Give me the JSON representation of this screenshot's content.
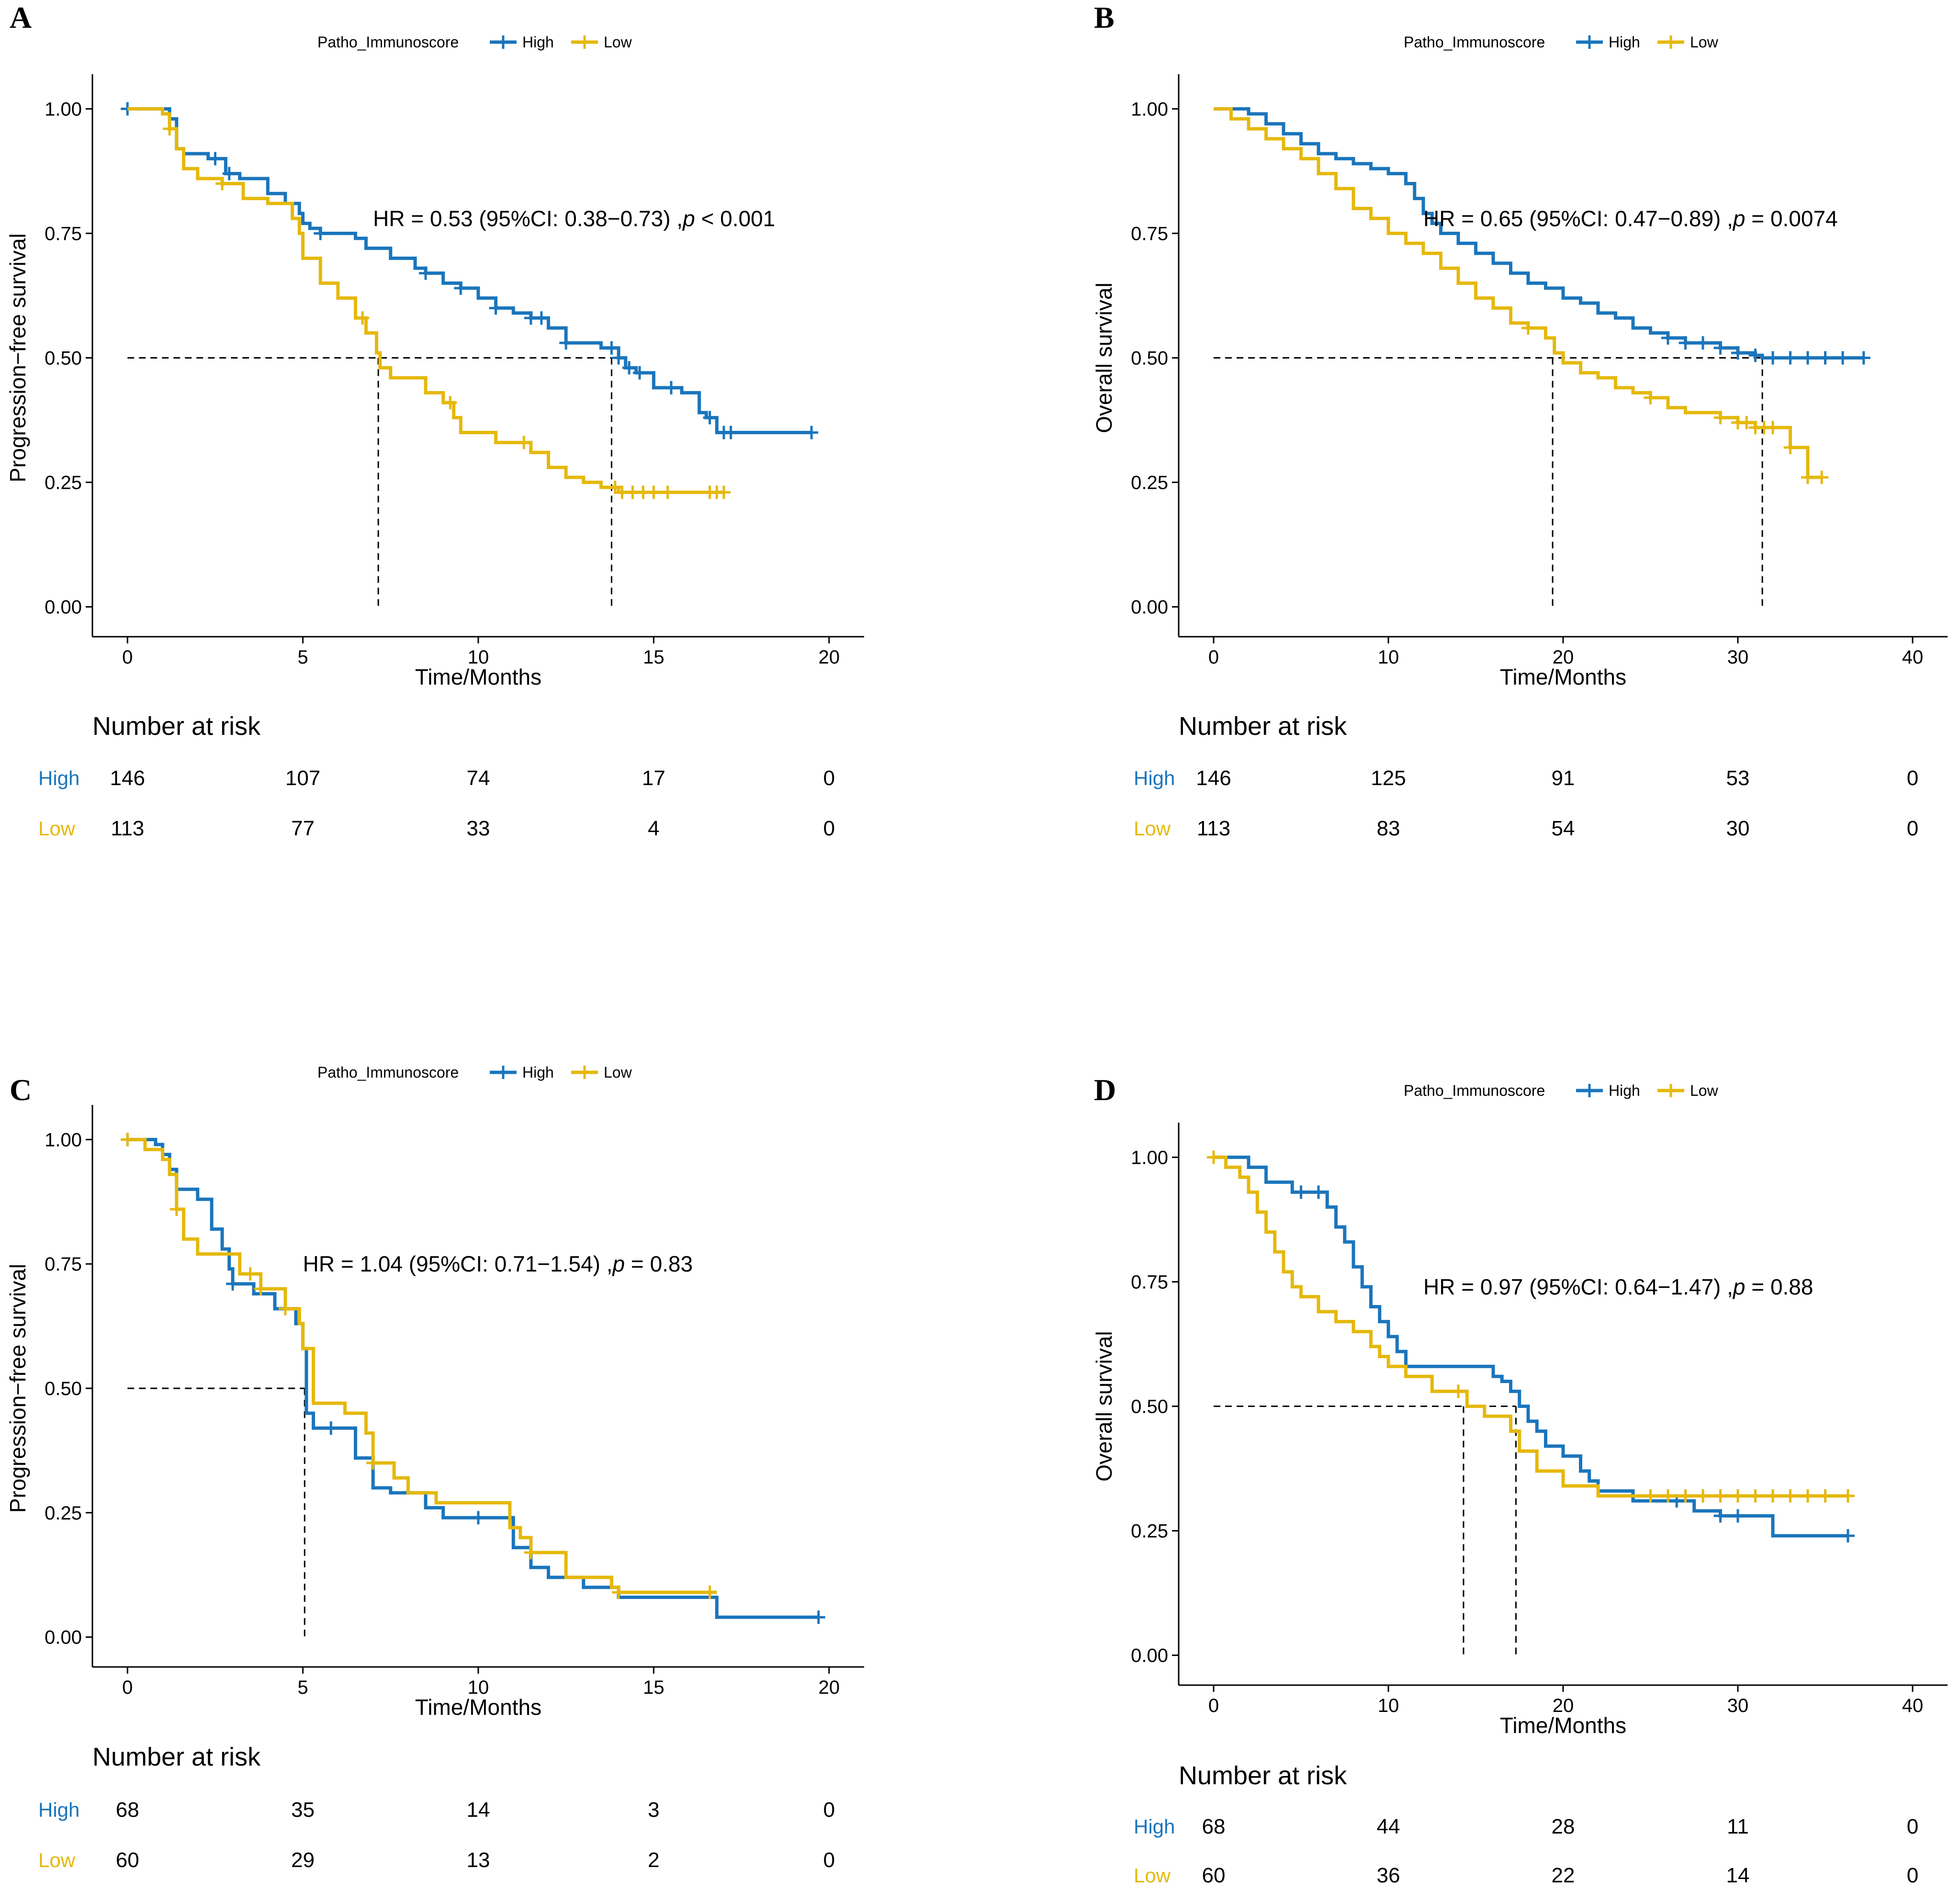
{
  "colors": {
    "High": "#1a75bc",
    "Low": "#e5b80b",
    "axis": "#000000",
    "median": "#000000"
  },
  "chart_data": [
    {
      "panel": "A",
      "type": "line",
      "legend_title": "Patho_Immunoscore",
      "legend_labels": [
        "High",
        "Low"
      ],
      "ylabel": "Progression−free survival",
      "xlabel": "Time/Months",
      "xlim": [
        -1,
        21
      ],
      "ylim": [
        -0.06,
        1.06
      ],
      "x_ticks": [
        0,
        5,
        10,
        15,
        20
      ],
      "x_tick_labels": [
        "0",
        "5",
        "10",
        "15",
        "20"
      ],
      "y_ticks": [
        0,
        0.25,
        0.5,
        0.75,
        1
      ],
      "y_tick_labels": [
        "0.00",
        "0.25",
        "0.50",
        "0.75",
        "1.00"
      ],
      "hr_text": "HR = 0.53 (95%CI: 0.38−0.73) ,",
      "p_label": "p",
      "p_text": " < 0.001",
      "hr_pos": [
        7,
        0.78
      ],
      "medians": [
        7.15,
        13.8
      ],
      "series": [
        {
          "name": "High",
          "x": [
            0,
            1.2,
            1.4,
            1.6,
            2.3,
            2.8,
            3.2,
            4.0,
            4.5,
            4.9,
            5.0,
            5.2,
            5.5,
            6.5,
            6.8,
            7.5,
            8.2,
            8.5,
            9.0,
            9.5,
            10.0,
            10.5,
            11.0,
            11.5,
            12.0,
            12.5,
            13.5,
            14.0,
            14.2,
            14.5,
            15.0,
            15.8,
            16.3,
            16.5,
            16.8,
            19.5
          ],
          "y": [
            1.0,
            0.98,
            0.92,
            0.91,
            0.9,
            0.87,
            0.86,
            0.83,
            0.81,
            0.79,
            0.77,
            0.76,
            0.75,
            0.74,
            0.72,
            0.7,
            0.68,
            0.67,
            0.65,
            0.64,
            0.62,
            0.6,
            0.59,
            0.58,
            0.56,
            0.53,
            0.52,
            0.5,
            0.48,
            0.47,
            0.44,
            0.43,
            0.39,
            0.38,
            0.35,
            0.35
          ],
          "censor_x": [
            0,
            2.5,
            2.9,
            5.5,
            8.5,
            9.5,
            10.5,
            11.5,
            11.8,
            12.5,
            13.8,
            14.0,
            14.3,
            14.6,
            15.5,
            16.6,
            17.0,
            17.2,
            19.5
          ],
          "risk": [
            "146",
            "107",
            "74",
            "17",
            "0"
          ]
        },
        {
          "name": "Low",
          "x": [
            0,
            1.0,
            1.2,
            1.4,
            1.6,
            2.0,
            2.7,
            3.3,
            4.0,
            4.7,
            4.9,
            5.0,
            5.5,
            6.0,
            6.5,
            6.8,
            7.1,
            7.2,
            7.5,
            8.5,
            9.0,
            9.3,
            9.5,
            10.5,
            11.5,
            12.0,
            12.5,
            13.0,
            13.5,
            14.0,
            17.0
          ],
          "y": [
            1.0,
            0.99,
            0.96,
            0.92,
            0.88,
            0.86,
            0.85,
            0.82,
            0.81,
            0.78,
            0.75,
            0.7,
            0.65,
            0.62,
            0.58,
            0.55,
            0.51,
            0.48,
            0.46,
            0.43,
            0.41,
            0.38,
            0.35,
            0.33,
            0.31,
            0.28,
            0.26,
            0.25,
            0.24,
            0.23,
            0.23
          ],
          "censor_x": [
            1.2,
            2.7,
            6.7,
            9.2,
            11.3,
            13.9,
            14.1,
            14.4,
            14.7,
            15.0,
            15.4,
            16.6,
            16.8,
            17.0
          ],
          "risk": [
            "113",
            "77",
            "33",
            "4",
            "0"
          ]
        }
      ],
      "risk_title": "Number at risk",
      "risk_times": [
        0,
        5,
        10,
        15,
        20
      ]
    },
    {
      "panel": "B",
      "type": "line",
      "legend_title": "Patho_Immunoscore",
      "legend_labels": [
        "High",
        "Low"
      ],
      "ylabel": "Overall survival",
      "xlabel": "Time/Months",
      "xlim": [
        -2,
        42
      ],
      "ylim": [
        -0.06,
        1.06
      ],
      "x_ticks": [
        0,
        10,
        20,
        30,
        40
      ],
      "x_tick_labels": [
        "0",
        "10",
        "20",
        "30",
        "40"
      ],
      "y_ticks": [
        0,
        0.25,
        0.5,
        0.75,
        1
      ],
      "y_tick_labels": [
        "0.00",
        "0.25",
        "0.50",
        "0.75",
        "1.00"
      ],
      "hr_text": "HR = 0.65 (95%CI: 0.47−0.89) ,",
      "p_label": "p",
      "p_text": " = 0.0074",
      "hr_pos": [
        12,
        0.78
      ],
      "medians": [
        19.4,
        31.4
      ],
      "series": [
        {
          "name": "High",
          "x": [
            0,
            2.0,
            3.0,
            4.0,
            5.0,
            6.0,
            7.0,
            8.0,
            9.0,
            10.0,
            11.0,
            11.5,
            12.0,
            12.5,
            13.0,
            14.0,
            15.0,
            16.0,
            17.0,
            18.0,
            19.0,
            20.0,
            21.0,
            22.0,
            23.0,
            24.0,
            25.0,
            26.0,
            27.0,
            28.0,
            29.0,
            30.0,
            31.0,
            31.4,
            37.2
          ],
          "y": [
            1.0,
            0.99,
            0.97,
            0.95,
            0.93,
            0.91,
            0.9,
            0.89,
            0.88,
            0.87,
            0.85,
            0.82,
            0.79,
            0.77,
            0.75,
            0.73,
            0.71,
            0.69,
            0.67,
            0.65,
            0.64,
            0.62,
            0.61,
            0.59,
            0.58,
            0.56,
            0.55,
            0.54,
            0.53,
            0.53,
            0.52,
            0.51,
            0.505,
            0.5,
            0.5
          ],
          "censor_x": [
            26,
            27,
            28,
            29,
            30,
            31,
            32,
            33,
            34,
            35,
            36,
            37.2
          ],
          "risk": [
            "146",
            "125",
            "91",
            "53",
            "0"
          ]
        },
        {
          "name": "Low",
          "x": [
            0,
            1.0,
            2.0,
            3.0,
            4.0,
            5.0,
            6.0,
            7.0,
            8.0,
            9.0,
            10.0,
            11.0,
            12.0,
            13.0,
            14.0,
            15.0,
            16.0,
            17.0,
            18.0,
            19.0,
            19.5,
            20.0,
            21.0,
            22.0,
            23.0,
            24.0,
            25.0,
            26.0,
            27.0,
            28.0,
            29.0,
            30.0,
            31.0,
            32.0,
            33.0,
            34.0,
            34.8
          ],
          "y": [
            1.0,
            0.98,
            0.96,
            0.94,
            0.92,
            0.9,
            0.87,
            0.84,
            0.8,
            0.78,
            0.75,
            0.73,
            0.71,
            0.68,
            0.65,
            0.62,
            0.6,
            0.57,
            0.56,
            0.54,
            0.51,
            0.49,
            0.47,
            0.46,
            0.44,
            0.43,
            0.42,
            0.4,
            0.39,
            0.39,
            0.38,
            0.37,
            0.36,
            0.36,
            0.32,
            0.26,
            0.26
          ],
          "censor_x": [
            18,
            25,
            29,
            30,
            30.5,
            31,
            31.5,
            32,
            33,
            34,
            34.8
          ],
          "risk": [
            "113",
            "83",
            "54",
            "30",
            "0"
          ]
        }
      ],
      "risk_title": "Number at risk",
      "risk_times": [
        0,
        10,
        20,
        30,
        40
      ]
    },
    {
      "panel": "C",
      "type": "line",
      "legend_title": "Patho_Immunoscore",
      "legend_labels": [
        "High",
        "Low"
      ],
      "ylabel": "Progression−free survival",
      "xlabel": "Time/Months",
      "xlim": [
        -1,
        21
      ],
      "ylim": [
        -0.06,
        1.06
      ],
      "x_ticks": [
        0,
        5,
        10,
        15,
        20
      ],
      "x_tick_labels": [
        "0",
        "5",
        "10",
        "15",
        "20"
      ],
      "y_ticks": [
        0,
        0.25,
        0.5,
        0.75,
        1
      ],
      "y_tick_labels": [
        "0.00",
        "0.25",
        "0.50",
        "0.75",
        "1.00"
      ],
      "hr_text": "HR = 1.04 (95%CI: 0.71−1.54) ,",
      "p_label": "p",
      "p_text": " = 0.83",
      "hr_pos": [
        5,
        0.75
      ],
      "medians": [
        5.05
      ],
      "series": [
        {
          "name": "High",
          "x": [
            0,
            0.8,
            1.0,
            1.2,
            1.4,
            2.0,
            2.4,
            2.7,
            2.9,
            3.0,
            3.6,
            4.2,
            4.8,
            5.0,
            5.1,
            5.3,
            6.5,
            7.0,
            7.5,
            8.5,
            9.0,
            11.0,
            11.5,
            12.0,
            13.0,
            14.0,
            16.8,
            19.7
          ],
          "y": [
            1.0,
            0.99,
            0.97,
            0.94,
            0.9,
            0.88,
            0.82,
            0.78,
            0.74,
            0.71,
            0.69,
            0.66,
            0.63,
            0.58,
            0.45,
            0.42,
            0.36,
            0.3,
            0.29,
            0.26,
            0.24,
            0.18,
            0.14,
            0.12,
            0.1,
            0.08,
            0.04,
            0.04
          ],
          "censor_x": [
            0,
            3.0,
            5.8,
            10.0,
            19.7
          ],
          "risk": [
            "68",
            "35",
            "14",
            "3",
            "0"
          ]
        },
        {
          "name": "Low",
          "x": [
            0,
            0.5,
            1.0,
            1.2,
            1.4,
            1.6,
            2.0,
            3.2,
            3.8,
            4.5,
            4.9,
            5.0,
            5.3,
            6.2,
            6.8,
            7.0,
            7.6,
            8.0,
            8.8,
            10.9,
            11.2,
            11.5,
            12.5,
            13.8,
            14.0,
            16.8
          ],
          "y": [
            1.0,
            0.98,
            0.96,
            0.93,
            0.86,
            0.8,
            0.77,
            0.73,
            0.7,
            0.66,
            0.63,
            0.58,
            0.47,
            0.45,
            0.41,
            0.35,
            0.32,
            0.29,
            0.27,
            0.22,
            0.2,
            0.17,
            0.12,
            0.1,
            0.09,
            0.09
          ],
          "censor_x": [
            0,
            1.4,
            3.5,
            3.8,
            4.5,
            7.0,
            11.5,
            14.0,
            16.6
          ],
          "risk": [
            "60",
            "29",
            "13",
            "2",
            "0"
          ]
        }
      ],
      "risk_title": "Number at risk",
      "risk_times": [
        0,
        5,
        10,
        15,
        20
      ]
    },
    {
      "panel": "D",
      "type": "line",
      "legend_title": "Patho_Immunoscore",
      "legend_labels": [
        "High",
        "Low"
      ],
      "ylabel": "Overall survival",
      "xlabel": "Time/Months",
      "xlim": [
        -2,
        42
      ],
      "ylim": [
        -0.06,
        1.06
      ],
      "x_ticks": [
        0,
        10,
        20,
        30,
        40
      ],
      "x_tick_labels": [
        "0",
        "10",
        "20",
        "30",
        "40"
      ],
      "y_ticks": [
        0,
        0.25,
        0.5,
        0.75,
        1
      ],
      "y_tick_labels": [
        "0.00",
        "0.25",
        "0.50",
        "0.75",
        "1.00"
      ],
      "hr_text": "HR = 0.97 (95%CI: 0.64−1.47) ,",
      "p_label": "p",
      "p_text": " = 0.88",
      "hr_pos": [
        12,
        0.74
      ],
      "medians": [
        14.3,
        17.3
      ],
      "series": [
        {
          "name": "High",
          "x": [
            0,
            2.0,
            3.0,
            4.5,
            6.5,
            7.0,
            7.5,
            8.0,
            8.5,
            9.0,
            9.5,
            10.0,
            10.5,
            11.0,
            15.5,
            16.0,
            16.5,
            17.0,
            17.5,
            18.0,
            18.5,
            19.0,
            20.0,
            21.0,
            21.5,
            22.0,
            24.0,
            27.0,
            27.5,
            29.0,
            31.5,
            32.0,
            36.3
          ],
          "y": [
            1.0,
            0.98,
            0.95,
            0.93,
            0.9,
            0.86,
            0.83,
            0.78,
            0.74,
            0.7,
            0.67,
            0.64,
            0.61,
            0.58,
            0.58,
            0.56,
            0.55,
            0.53,
            0.5,
            0.47,
            0.45,
            0.42,
            0.4,
            0.37,
            0.35,
            0.33,
            0.31,
            0.31,
            0.29,
            0.28,
            0.28,
            0.24,
            0.24
          ],
          "censor_x": [
            5,
            6,
            26.5,
            29,
            30,
            36.3
          ],
          "risk": [
            "68",
            "44",
            "28",
            "11",
            "0"
          ]
        },
        {
          "name": "Low",
          "x": [
            0,
            0.7,
            1.5,
            2.0,
            2.5,
            3.0,
            3.5,
            4.0,
            4.5,
            5.0,
            6.0,
            7.0,
            8.0,
            9.0,
            9.5,
            10.0,
            11.0,
            12.5,
            14.5,
            15.5,
            17.0,
            17.5,
            18.5,
            20.0,
            22.0,
            23.5,
            36.3
          ],
          "y": [
            1.0,
            0.98,
            0.96,
            0.93,
            0.89,
            0.85,
            0.81,
            0.77,
            0.74,
            0.72,
            0.69,
            0.67,
            0.65,
            0.62,
            0.6,
            0.58,
            0.56,
            0.53,
            0.5,
            0.48,
            0.45,
            0.41,
            0.37,
            0.34,
            0.32,
            0.32,
            0.32
          ],
          "censor_x": [
            0,
            14.0,
            25,
            26,
            27,
            28,
            29,
            30,
            31,
            32,
            33,
            34,
            35,
            36.3
          ],
          "risk": [
            "60",
            "36",
            "22",
            "14",
            "0"
          ]
        }
      ],
      "risk_title": "Number at risk",
      "risk_times": [
        0,
        10,
        20,
        30,
        40
      ]
    }
  ]
}
